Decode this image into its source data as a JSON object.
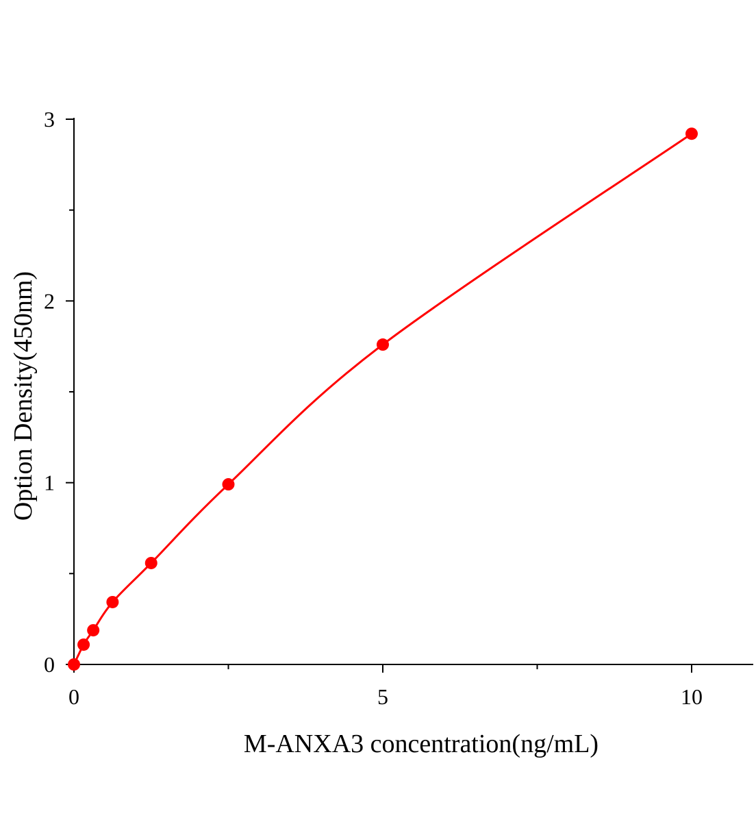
{
  "chart_data": {
    "type": "line",
    "title": "",
    "xlabel": "M-ANXA3 concentration(ng/mL)",
    "ylabel": "Option Density(450nm)",
    "xlim": [
      0,
      11
    ],
    "ylim": [
      0,
      3
    ],
    "x_ticks": [
      0,
      5,
      10
    ],
    "x_tick_labels": [
      "0",
      "5",
      "10"
    ],
    "x_minor_ticks": [
      2.5,
      7.5
    ],
    "y_ticks": [
      0,
      1,
      2,
      3
    ],
    "y_tick_labels": [
      "0",
      "1",
      "2",
      "3"
    ],
    "y_minor_ticks": [
      0.5,
      1.5,
      2.5
    ],
    "grid": false,
    "color": "#ff0000",
    "series": [
      {
        "x": [
          0,
          0.156,
          0.3125,
          0.625,
          1.25,
          2.5,
          5,
          10
        ],
        "y": [
          0.0,
          0.109,
          0.188,
          0.343,
          0.558,
          0.991,
          1.76,
          2.92
        ]
      }
    ]
  }
}
